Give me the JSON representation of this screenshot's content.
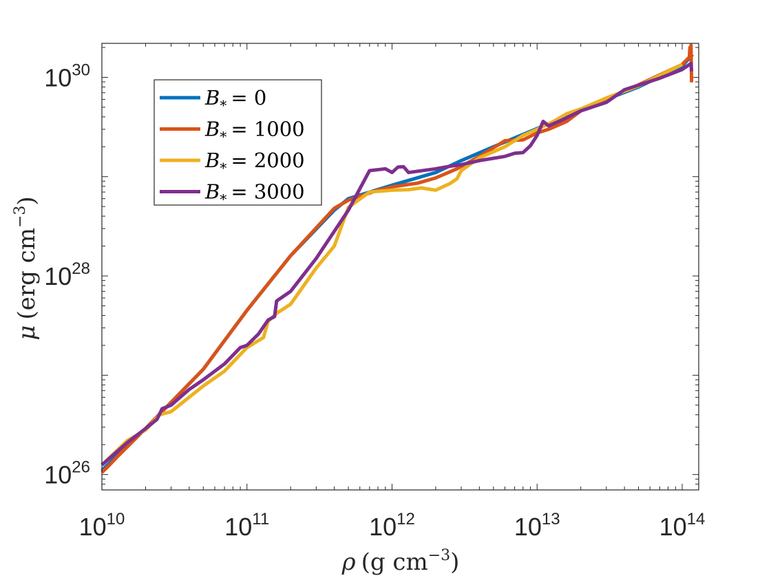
{
  "chart_data": {
    "type": "line",
    "xscale": "log",
    "yscale": "log",
    "xlim": [
      10000000000.0,
      130000000000000.0
    ],
    "ylim": [
      7e+25,
      2.2e+30
    ],
    "xticks": [
      {
        "value": 10000000000.0,
        "base": "10",
        "exp": "10"
      },
      {
        "value": 100000000000.0,
        "base": "10",
        "exp": "11"
      },
      {
        "value": 1000000000000.0,
        "base": "10",
        "exp": "12"
      },
      {
        "value": 10000000000000.0,
        "base": "10",
        "exp": "13"
      },
      {
        "value": 100000000000000.0,
        "base": "10",
        "exp": "14"
      }
    ],
    "yticks": [
      {
        "value": 1e+26,
        "base": "10",
        "exp": "26"
      },
      {
        "value": 1e+28,
        "base": "10",
        "exp": "28"
      },
      {
        "value": 1e+30,
        "base": "10",
        "exp": "30"
      }
    ],
    "xlabel": {
      "symbol": "ρ",
      "units": "(g cm",
      "exp": "−3",
      "close": ")"
    },
    "ylabel": {
      "symbol": "μ",
      "units": "(erg cm",
      "exp": "−3",
      "close": ")"
    },
    "legend_position": "top-left",
    "series": [
      {
        "name": "B* = 0",
        "label_symbol": "B",
        "label_sub": "*",
        "label_value": "= 0",
        "color": "#0072BD",
        "points": [
          [
            10000000000.0,
            1.1e+26
          ],
          [
            20000000000.0,
            2.9e+26
          ],
          [
            50000000000.0,
            1.15e+27
          ],
          [
            100000000000.0,
            4.5e+27
          ],
          [
            200000000000.0,
            1.6e+28
          ],
          [
            400000000000.0,
            4.6e+28
          ],
          [
            500000000000.0,
            6e+28
          ],
          [
            1000000000000.0,
            8.2e+28
          ],
          [
            2000000000000.0,
            1.1e+29
          ],
          [
            3000000000000.0,
            1.45e+29
          ],
          [
            5000000000000.0,
            2e+29
          ],
          [
            10000000000000.0,
            3.05e+29
          ],
          [
            15000000000000.0,
            3.85e+29
          ],
          [
            20000000000000.0,
            4.7e+29
          ],
          [
            30000000000000.0,
            6e+29
          ],
          [
            50000000000000.0,
            8e+29
          ],
          [
            100000000000000.0,
            1.3e+30
          ],
          [
            118000000000000.0,
            1.7e+30
          ]
        ]
      },
      {
        "name": "B* = 1000",
        "label_symbol": "B",
        "label_sub": "*",
        "label_value": "= 1000",
        "color": "#D95319",
        "points": [
          [
            10000000000.0,
            1.05e+26
          ],
          [
            11000000000.0,
            1.2e+26
          ],
          [
            13000000000.0,
            1.55e+26
          ],
          [
            20000000000.0,
            2.9e+26
          ],
          [
            50000000000.0,
            1.15e+27
          ],
          [
            100000000000.0,
            4.5e+27
          ],
          [
            200000000000.0,
            1.6e+28
          ],
          [
            400000000000.0,
            4.8e+28
          ],
          [
            500000000000.0,
            5.8e+28
          ],
          [
            800000000000.0,
            7.3e+28
          ],
          [
            1000000000000.0,
            7.9e+28
          ],
          [
            1500000000000.0,
            8.6e+28
          ],
          [
            2000000000000.0,
            9.7e+28
          ],
          [
            2800000000000.0,
            1.2e+29
          ],
          [
            4000000000000.0,
            1.6e+29
          ],
          [
            6000000000000.0,
            2.3e+29
          ],
          [
            8000000000000.0,
            2.35e+29
          ],
          [
            10000000000000.0,
            2.75e+29
          ],
          [
            12000000000000.0,
            3e+29
          ],
          [
            16000000000000.0,
            3.6e+29
          ],
          [
            20000000000000.0,
            4.6e+29
          ],
          [
            30000000000000.0,
            6e+29
          ],
          [
            50000000000000.0,
            8.4e+29
          ],
          [
            100000000000000.0,
            1.35e+30
          ],
          [
            112000000000000.0,
            1.6e+30
          ],
          [
            113000000000000.0,
            2e+30
          ],
          [
            114000000000000.0,
            1.7e+30
          ],
          [
            115000000000000.0,
            2.1e+30
          ],
          [
            116000000000000.0,
            8.9e+29
          ]
        ]
      },
      {
        "name": "B* = 2000",
        "label_symbol": "B",
        "label_sub": "*",
        "label_value": "= 2000",
        "color": "#EDB120",
        "points": [
          [
            10000000000.0,
            1.25e+26
          ],
          [
            15000000000.0,
            2.2e+26
          ],
          [
            20000000000.0,
            2.8e+26
          ],
          [
            25000000000.0,
            4e+26
          ],
          [
            30000000000.0,
            4.3e+26
          ],
          [
            50000000000.0,
            7.8e+26
          ],
          [
            70000000000.0,
            1.1e+27
          ],
          [
            100000000000.0,
            1.9e+27
          ],
          [
            130000000000.0,
            2.4e+27
          ],
          [
            140000000000.0,
            3.5e+27
          ],
          [
            160000000000.0,
            4.2e+27
          ],
          [
            200000000000.0,
            5.2e+27
          ],
          [
            300000000000.0,
            1.2e+28
          ],
          [
            400000000000.0,
            2e+28
          ],
          [
            500000000000.0,
            4.9e+28
          ],
          [
            700000000000.0,
            7e+28
          ],
          [
            1000000000000.0,
            7.3e+28
          ],
          [
            1300000000000.0,
            7.4e+28
          ],
          [
            1600000000000.0,
            7.7e+28
          ],
          [
            2000000000000.0,
            7.3e+28
          ],
          [
            2500000000000.0,
            8.5e+28
          ],
          [
            2800000000000.0,
            9.5e+28
          ],
          [
            3000000000000.0,
            1.15e+29
          ],
          [
            4000000000000.0,
            1.55e+29
          ],
          [
            6000000000000.0,
            2e+29
          ],
          [
            8000000000000.0,
            2.6e+29
          ],
          [
            10000000000000.0,
            3e+29
          ],
          [
            13000000000000.0,
            3.6e+29
          ],
          [
            16000000000000.0,
            4.3e+29
          ],
          [
            20000000000000.0,
            4.8e+29
          ],
          [
            30000000000000.0,
            6.2e+29
          ],
          [
            50000000000000.0,
            8.2e+29
          ],
          [
            100000000000000.0,
            1.35e+30
          ]
        ]
      },
      {
        "name": "B* = 3000",
        "label_symbol": "B",
        "label_sub": "*",
        "label_value": "= 3000",
        "color": "#7E2F8E",
        "points": [
          [
            10000000000.0,
            1.25e+26
          ],
          [
            15000000000.0,
            2.1e+26
          ],
          [
            20000000000.0,
            2.9e+26
          ],
          [
            24000000000.0,
            3.6e+26
          ],
          [
            26000000000.0,
            4.6e+26
          ],
          [
            30000000000.0,
            5e+26
          ],
          [
            40000000000.0,
            7.2e+26
          ],
          [
            50000000000.0,
            9e+26
          ],
          [
            70000000000.0,
            1.3e+27
          ],
          [
            90000000000.0,
            1.9e+27
          ],
          [
            100000000000.0,
            2e+27
          ],
          [
            120000000000.0,
            2.6e+27
          ],
          [
            140000000000.0,
            3.6e+27
          ],
          [
            155000000000.0,
            3.9e+27
          ],
          [
            160000000000.0,
            5.6e+27
          ],
          [
            200000000000.0,
            7e+27
          ],
          [
            300000000000.0,
            1.5e+28
          ],
          [
            500000000000.0,
            4.6e+28
          ],
          [
            700000000000.0,
            1.15e+29
          ],
          [
            900000000000.0,
            1.2e+29
          ],
          [
            1000000000000.0,
            1.1e+29
          ],
          [
            1100000000000.0,
            1.25e+29
          ],
          [
            1200000000000.0,
            1.26e+29
          ],
          [
            1300000000000.0,
            1.1e+29
          ],
          [
            2000000000000.0,
            1.2e+29
          ],
          [
            2500000000000.0,
            1.27e+29
          ],
          [
            3000000000000.0,
            1.32e+29
          ],
          [
            4000000000000.0,
            1.45e+29
          ],
          [
            6000000000000.0,
            1.6e+29
          ],
          [
            7000000000000.0,
            1.72e+29
          ],
          [
            8000000000000.0,
            1.75e+29
          ],
          [
            9000000000000.0,
            2.05e+29
          ],
          [
            10000000000000.0,
            2.6e+29
          ],
          [
            11000000000000.0,
            3.6e+29
          ],
          [
            12000000000000.0,
            3.25e+29
          ],
          [
            15000000000000.0,
            3.75e+29
          ],
          [
            20000000000000.0,
            4.6e+29
          ],
          [
            30000000000000.0,
            5.6e+29
          ],
          [
            40000000000000.0,
            7.5e+29
          ],
          [
            70000000000000.0,
            9.8e+29
          ],
          [
            100000000000000.0,
            1.2e+30
          ],
          [
            115000000000000.0,
            1.38e+30
          ],
          [
            116000000000000.0,
            1.15e+30
          ]
        ]
      }
    ]
  }
}
